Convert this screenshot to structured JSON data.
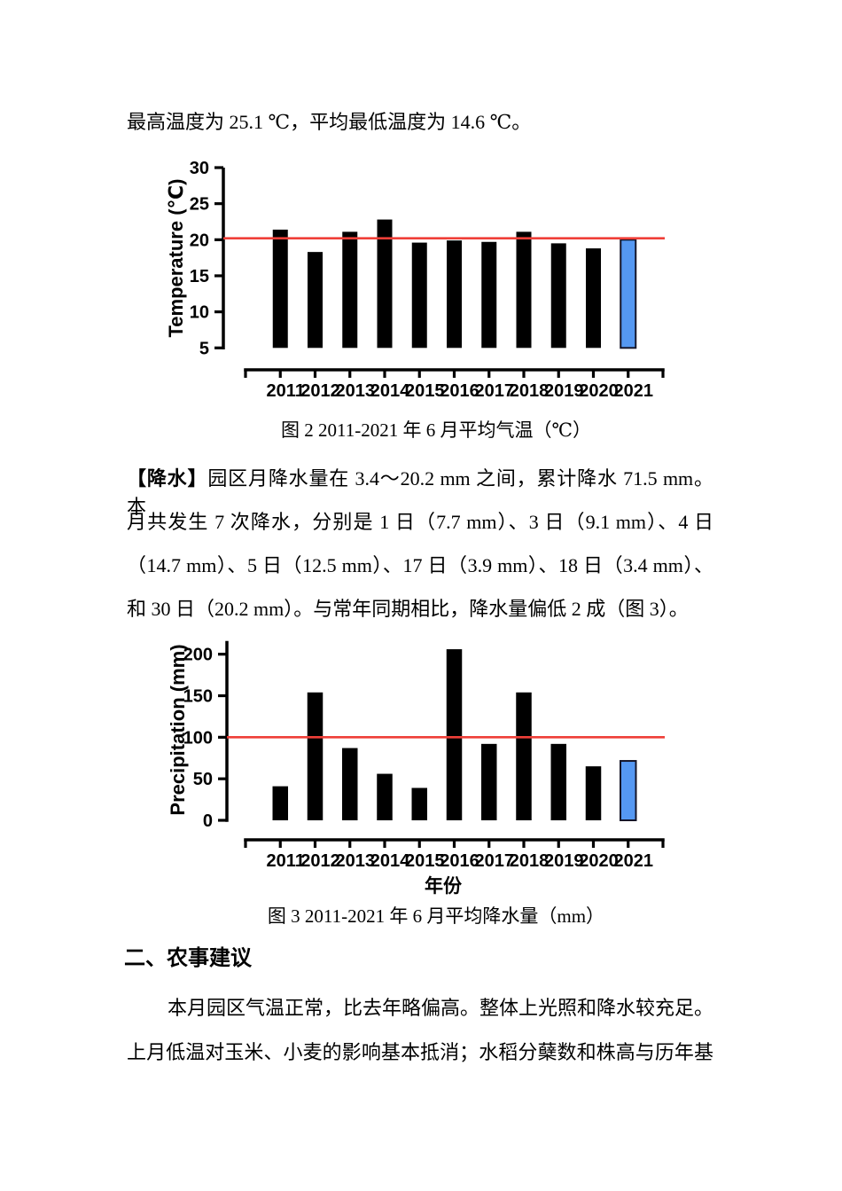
{
  "page": {
    "line1": "最高温度为 25.1 ℃，平均最低温度为 14.6 ℃。",
    "captions": {
      "fig2": "图 2 2011-2021 年 6 月平均气温（℃）",
      "fig3": "图 3 2011-2021 年 6 月平均降水量（mm）"
    },
    "para_precip": {
      "lead": "【降水】",
      "line1_rest": "园区月降水量在 3.4～20.2 mm 之间，累计降水 71.5 mm。本",
      "line2": "月共发生 7 次降水，分别是 1 日（7.7 mm）、3 日（9.1 mm）、4 日",
      "line3": "（14.7 mm）、5 日（12.5 mm）、17 日（3.9 mm）、18 日（3.4 mm）、",
      "line4": "和 30 日（20.2 mm）。与常年同期相比，降水量偏低 2 成（图 3）。"
    },
    "section_heading": "二、农事建议",
    "para_advice": {
      "line1": "本月园区气温正常，比去年略偏高。整体上光照和降水较充足。",
      "line2": "上月低温对玉米、小麦的影响基本抵消；水稻分蘖数和株高与历年基"
    }
  },
  "colors": {
    "bar": "#000000",
    "highlight_bar": "#5598f2",
    "highlight_border": "#151528",
    "ref_line": "#ef3f38",
    "axis": "#000000"
  },
  "chart_data": [
    {
      "type": "bar",
      "title": "图 2 2011-2021 年 6 月平均气温（℃）",
      "xlabel": "",
      "ylabel": "Temperature (℃)",
      "categories": [
        "2011",
        "2012",
        "2013",
        "2014",
        "2015",
        "2016",
        "2017",
        "2018",
        "2019",
        "2020",
        "2021"
      ],
      "values": [
        21.4,
        18.3,
        21.1,
        22.8,
        19.6,
        19.9,
        19.7,
        21.1,
        19.5,
        18.8,
        20.0
      ],
      "ylim": [
        5,
        30
      ],
      "yticks": [
        5,
        10,
        15,
        20,
        25,
        30
      ],
      "reference_line": 20.2,
      "highlight_index": 10,
      "grid": false,
      "legend": false
    },
    {
      "type": "bar",
      "title": "图 3 2011-2021 年 6 月平均降水量（mm）",
      "xlabel": "年份",
      "ylabel": "Precipitation (mm)",
      "categories": [
        "2011",
        "2012",
        "2013",
        "2014",
        "2015",
        "2016",
        "2017",
        "2018",
        "2019",
        "2020",
        "2021"
      ],
      "values": [
        41,
        154,
        87,
        56,
        39,
        206,
        92,
        154,
        92,
        65,
        71.5
      ],
      "ylim": [
        0,
        220
      ],
      "yticks": [
        0,
        50,
        100,
        150,
        200
      ],
      "reference_line": 100,
      "highlight_index": 10,
      "grid": false,
      "legend": false
    }
  ]
}
